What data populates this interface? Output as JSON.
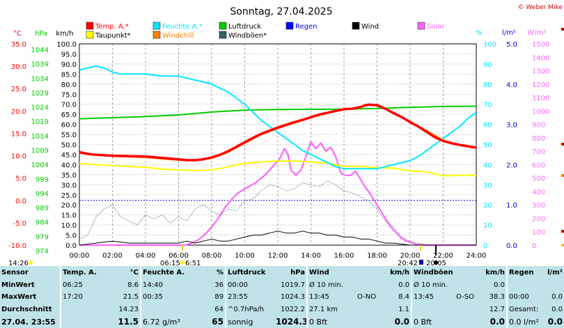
{
  "title": "Sonntag, 27.04.2025",
  "copyright": "© Weber Mike",
  "unit_labels": {
    "temp": "°C",
    "hpa": "hPa",
    "kmh": "km/h",
    "pct": "%",
    "rain": "l/m²",
    "solar": "W/m²"
  },
  "legend": [
    {
      "label": "Temp. A.*",
      "color": "#ff0000"
    },
    {
      "label": "Feuchte A.*",
      "color": "#00e8ff"
    },
    {
      "label": "Luftdruck",
      "color": "#00cc00"
    },
    {
      "label": "Regen",
      "color": "#0000ff"
    },
    {
      "label": "Wind",
      "color": "#000000"
    },
    {
      "label": "Solar",
      "color": "#ff66ff"
    },
    {
      "label": "Taupunkt*",
      "color": "#ffff00"
    },
    {
      "label": "Windchill",
      "color": "#ff8000"
    },
    {
      "label": "Windböen*",
      "color": "#336666"
    }
  ],
  "axis_ticks": {
    "temp": [
      "35.0",
      "30.0",
      "25.0",
      "20.0",
      "15.0",
      "10.0",
      "5.0",
      "0.0",
      "-5.0",
      "-10.0"
    ],
    "hpa": [
      "1044",
      "1039",
      "1034",
      "1029",
      "1024",
      "1019",
      "1014",
      "1009",
      "1004",
      "999",
      "994",
      "989",
      "984",
      "979",
      "974"
    ],
    "kmh": [
      "100.0",
      "95.0",
      "90.0",
      "85.0",
      "80.0",
      "75.0",
      "70.0",
      "65.0",
      "60.0",
      "55.0",
      "50.0",
      "45.0",
      "40.0",
      "35.0",
      "30.0",
      "25.0",
      "20.0",
      "15.0",
      "10.0",
      "5.0",
      "0.0"
    ],
    "pct": [
      "100",
      "90",
      "80",
      "70",
      "60",
      "50",
      "40",
      "30",
      "20",
      "10",
      "0"
    ],
    "rain": [
      "5.0",
      "4.0",
      "3.0",
      "2.0",
      "1.0",
      "0.0"
    ],
    "solar": [
      "1500",
      "1400",
      "1300",
      "1200",
      "1100",
      "1000",
      "900",
      "800",
      "700",
      "600",
      "500",
      "400",
      "300",
      "200",
      "100",
      "0"
    ]
  },
  "time_labels": [
    "00:00",
    "02:00",
    "04:00",
    "06:00",
    "08:00",
    "10:00",
    "12:00",
    "14:00",
    "16:00",
    "18:00",
    "20:00",
    "22:00",
    "24:00"
  ],
  "sun_markers": {
    "now": "14:26",
    "sunrise": "06:15",
    "sunrise_tail": "6:51",
    "sunset": "20:42",
    "sunset_tail": "20:05"
  },
  "chart_data": {
    "type": "line",
    "title": "Sonntag, 27.04.2025",
    "x_unit": "hours",
    "xlim": [
      0,
      24
    ],
    "axes": {
      "temp_c": [
        -10,
        35
      ],
      "pressure_hpa": [
        974,
        1046
      ],
      "wind_kmh": [
        0,
        100
      ],
      "humidity_pct": [
        0,
        100
      ],
      "rain_lm2": [
        0,
        5
      ],
      "solar_wm2": [
        0,
        1500
      ]
    },
    "series": [
      {
        "name": "Temp. A.*",
        "color": "#ff0000",
        "axis": "temp_c",
        "x": [
          0,
          0.5,
          1,
          2,
          3,
          4,
          5,
          6,
          6.5,
          7,
          7.5,
          8,
          8.5,
          9,
          9.5,
          10,
          10.5,
          11,
          11.5,
          12,
          12.5,
          13,
          13.5,
          14,
          14.5,
          15,
          15.5,
          16,
          16.5,
          17,
          17.3,
          17.5,
          18,
          18.5,
          19,
          19.5,
          20,
          20.5,
          21,
          21.5,
          22,
          22.5,
          23,
          23.5,
          24
        ],
        "y": [
          10.8,
          10.4,
          10.2,
          10.0,
          9.9,
          9.8,
          9.5,
          9.2,
          9.0,
          9.0,
          9.2,
          9.6,
          10.2,
          11.0,
          12.0,
          13.0,
          14.0,
          14.9,
          15.6,
          16.3,
          16.9,
          17.5,
          18.0,
          18.6,
          19.2,
          19.6,
          20.0,
          20.4,
          20.5,
          20.9,
          21.3,
          21.4,
          21.3,
          20.5,
          19.5,
          18.6,
          17.5,
          16.5,
          15.3,
          14.1,
          13.3,
          12.8,
          12.4,
          12.1,
          11.8
        ]
      },
      {
        "name": "Windchill",
        "color": "#ff8000",
        "axis": "temp_c",
        "x": [
          0,
          2,
          4,
          6,
          7,
          8,
          9,
          10,
          11,
          12,
          13,
          14,
          15,
          16,
          17,
          17.5,
          18,
          19,
          20,
          21,
          22,
          23,
          24
        ],
        "y": [
          10.6,
          9.9,
          9.6,
          9.0,
          8.9,
          9.4,
          10.8,
          12.8,
          14.7,
          16.1,
          17.3,
          18.5,
          19.5,
          20.3,
          20.8,
          21.3,
          21.2,
          19.6,
          17.7,
          15.6,
          13.5,
          12.3,
          11.7
        ]
      },
      {
        "name": "Feuchte A.*",
        "color": "#00e8ff",
        "axis": "humidity_pct",
        "x": [
          0,
          0.5,
          1,
          1.5,
          2,
          2.5,
          3,
          4,
          5,
          6,
          6.5,
          7,
          7.5,
          8,
          8.5,
          9,
          9.5,
          10,
          10.5,
          11,
          11.5,
          12,
          12.5,
          13,
          13.5,
          14,
          14.5,
          15,
          15.5,
          16,
          16.5,
          17,
          17.5,
          18,
          18.5,
          19,
          19.5,
          20,
          20.5,
          21,
          21.5,
          22,
          22.5,
          23,
          23.5,
          24
        ],
        "y": [
          87,
          88,
          89,
          88,
          86,
          85,
          85,
          85,
          84,
          84,
          83,
          82,
          81,
          80,
          78,
          76,
          73,
          70,
          66,
          62,
          59,
          56,
          53,
          50,
          47,
          45,
          43,
          41,
          39,
          38,
          38,
          38,
          38,
          38,
          39,
          40,
          41,
          42,
          44,
          47,
          50,
          53,
          56,
          59,
          63,
          66
        ]
      },
      {
        "name": "Luftdruck",
        "color": "#00cc00",
        "axis": "pressure_hpa",
        "x": [
          0,
          2,
          4,
          6,
          8,
          10,
          12,
          14,
          16,
          18,
          20,
          22,
          24
        ],
        "y": [
          1019.2,
          1019.6,
          1020.0,
          1020.6,
          1021.6,
          1022.3,
          1022.5,
          1022.6,
          1022.6,
          1022.9,
          1023.3,
          1023.6,
          1023.7
        ]
      },
      {
        "name": "Taupunkt*",
        "color": "#ffff00",
        "axis": "temp_c",
        "x": [
          0,
          1,
          2,
          3,
          4,
          5,
          6,
          7,
          8,
          9,
          10,
          11,
          12,
          13,
          14,
          15,
          16,
          17,
          18,
          19,
          20,
          21,
          22,
          23,
          24
        ],
        "y": [
          8.3,
          8.0,
          7.8,
          7.6,
          7.4,
          7.0,
          6.8,
          6.7,
          6.8,
          7.5,
          8.3,
          8.6,
          8.8,
          8.8,
          8.6,
          8.3,
          7.6,
          7.6,
          7.3,
          7.2,
          6.6,
          6.4,
          5.5,
          5.6,
          5.6
        ]
      },
      {
        "name": "Solar",
        "color": "#ff66ff",
        "axis": "solar_wm2",
        "x": [
          0,
          6.4,
          6.8,
          7.2,
          7.6,
          8,
          8.4,
          8.8,
          9.2,
          9.6,
          10,
          10.3,
          10.6,
          10.9,
          11.2,
          11.5,
          11.8,
          12.1,
          12.4,
          12.6,
          12.8,
          13.1,
          13.4,
          13.7,
          14,
          14.3,
          14.6,
          14.9,
          15.2,
          15.5,
          15.8,
          16.1,
          16.4,
          16.7,
          17,
          17.3,
          17.6,
          17.9,
          18.2,
          18.5,
          18.8,
          19.1,
          19.4,
          19.7,
          20,
          20.4,
          21,
          22,
          24
        ],
        "y": [
          0,
          0,
          15,
          40,
          80,
          135,
          200,
          280,
          340,
          390,
          420,
          440,
          460,
          490,
          520,
          560,
          600,
          640,
          720,
          680,
          560,
          520,
          560,
          660,
          770,
          720,
          760,
          700,
          730,
          660,
          540,
          520,
          520,
          550,
          490,
          430,
          380,
          320,
          260,
          200,
          140,
          100,
          60,
          35,
          20,
          5,
          0,
          0,
          0
        ]
      },
      {
        "name": "Windböen*",
        "color": "#336666",
        "axis": "wind_kmh",
        "x": [
          0,
          0.5,
          1,
          1.5,
          2,
          2.5,
          3,
          3.5,
          4,
          4.5,
          5,
          5.5,
          6,
          6.5,
          7,
          7.5,
          8,
          8.5,
          9,
          9.5,
          10,
          10.5,
          11,
          11.5,
          12,
          12.5,
          13,
          13.5,
          14,
          14.5,
          15,
          15.5,
          16,
          16.5,
          17,
          17.5,
          18,
          18.5,
          19,
          19.5,
          20,
          20.5,
          21
        ],
        "y": [
          3,
          5,
          14,
          18,
          20,
          14,
          12,
          10,
          15,
          13,
          15,
          11,
          14,
          12,
          18,
          20,
          17,
          15,
          18,
          17,
          22,
          23,
          27,
          30,
          29,
          27,
          28,
          31,
          30,
          29,
          32,
          30,
          27,
          26,
          24,
          22,
          18,
          12,
          9,
          4,
          2,
          1,
          0
        ]
      },
      {
        "name": "Wind",
        "color": "#000000",
        "axis": "wind_kmh",
        "x": [
          0,
          1,
          2,
          3,
          4,
          5,
          6,
          6.5,
          7,
          7.5,
          8,
          8.5,
          9,
          9.5,
          10,
          10.5,
          11,
          11.5,
          12,
          12.5,
          13,
          13.5,
          14,
          14.5,
          15,
          15.5,
          16,
          16.5,
          17,
          17.5,
          18,
          18.5,
          19,
          20,
          24
        ],
        "y": [
          0,
          1,
          2,
          1,
          1,
          1,
          1,
          2,
          1,
          2,
          3,
          2,
          2,
          3,
          4,
          5,
          5,
          6,
          7,
          6,
          6,
          7,
          6,
          6,
          5,
          5,
          4,
          4,
          3,
          3,
          2,
          1,
          1,
          0,
          0
        ]
      }
    ]
  },
  "table": {
    "headers": {
      "sensor": "Sensor",
      "temp": "Temp. A.",
      "temp_unit": "°C",
      "hum": "Feuchte A.",
      "hum_unit": "%",
      "press": "Luftdruck",
      "press_unit": "hPa",
      "wind": "Wind",
      "wind_unit": "km/h",
      "gust": "Windböen",
      "gust_unit": "km/h",
      "rain": "Regen",
      "rain_unit": "l/m²"
    },
    "rows": [
      {
        "label": "MinWert",
        "temp_t": "06:25",
        "temp_v": "8.6",
        "hum_t": "14:40",
        "hum_v": "36",
        "press_t": "00:00",
        "press_v": "1019.7",
        "wind_t": "Ø 10 min.",
        "wind_d": "",
        "wind_v": "0.0",
        "gust_t": "Ø 10 min.",
        "gust_d": "",
        "gust_v": "0.0",
        "rain_t": "",
        "rain_v": ""
      },
      {
        "label": "MaxWert",
        "temp_t": "17:20",
        "temp_v": "21.5",
        "hum_t": "00:35",
        "hum_v": "89",
        "press_t": "23:55",
        "press_v": "1024.3",
        "wind_t": "13:45",
        "wind_d": "O-NO",
        "wind_v": "8.4",
        "gust_t": "13:45",
        "gust_d": "O-SO",
        "gust_v": "38.3",
        "rain_t": "00:00",
        "rain_v": "0.0"
      },
      {
        "label": "Durchschnitt",
        "temp_t": "",
        "temp_v": "14.23",
        "hum_t": "",
        "hum_v": "64",
        "press_t": "^0.7hPa/h",
        "press_v": "1022.2",
        "wind_t": "27.1 km",
        "wind_d": "",
        "wind_v": "1.1",
        "gust_t": "",
        "gust_d": "",
        "gust_v": "12.7",
        "rain_t": "Gesamt:",
        "rain_v": "0.0"
      },
      {
        "label": "27.04. 23:55",
        "temp_t": "",
        "temp_v": "11.5",
        "hum_t": "6.72 g/m³",
        "hum_v": "65",
        "press_t": "sonnig",
        "press_v": "1024.3",
        "wind_t": "0 Bft",
        "wind_d": "",
        "wind_v": "0.0",
        "gust_t": "0 Bft",
        "gust_d": "",
        "gust_v": "0.0",
        "rain_t": "0.0 l/m²",
        "rain_v": "0.0"
      }
    ]
  }
}
